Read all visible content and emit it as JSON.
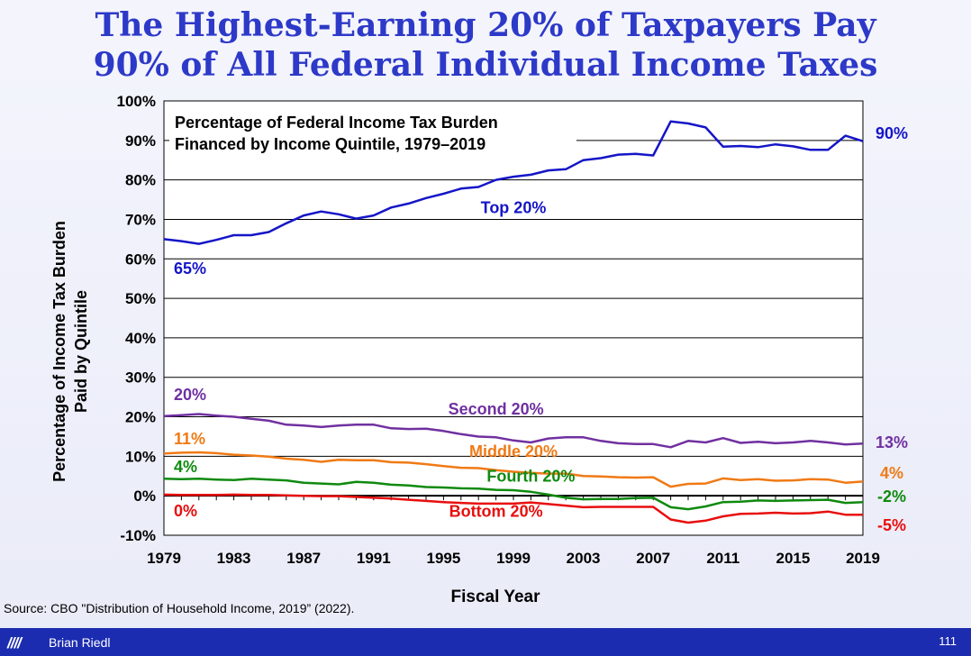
{
  "title_lines": [
    "The Highest-Earning 20% of Taxpayers Pay",
    "90% of All Federal Individual Income Taxes"
  ],
  "footer": {
    "logo": "////",
    "author": "Brian Riedl",
    "page_number": "111"
  },
  "source": "Source: CBO \"Distribution of Household Income, 2019” (2022).",
  "colors": {
    "title": "#2d39c8",
    "footer_bg": "#1c2cb0"
  },
  "chart_data": {
    "type": "line",
    "title": "Percentage of Federal Income Tax Burden\nFinanced by Income Quintile, 1979–2019",
    "xlabel": "Fiscal Year",
    "ylabel": "Percentage of Income Tax Burden\nPaid by Quintile",
    "xlim": [
      1979,
      2019
    ],
    "ylim": [
      -10,
      100
    ],
    "x_ticks": [
      1979,
      1983,
      1987,
      1991,
      1995,
      1999,
      2003,
      2007,
      2011,
      2015,
      2019
    ],
    "y_ticks": [
      "100%",
      "90%",
      "80%",
      "70%",
      "60%",
      "50%",
      "40%",
      "30%",
      "20%",
      "10%",
      "0%",
      "-10%"
    ],
    "y_tick_values": [
      100,
      90,
      80,
      70,
      60,
      50,
      40,
      30,
      20,
      10,
      0,
      -10
    ],
    "grid": "horizontal",
    "x": [
      1979,
      1980,
      1981,
      1982,
      1983,
      1984,
      1985,
      1986,
      1987,
      1988,
      1989,
      1990,
      1991,
      1992,
      1993,
      1994,
      1995,
      1996,
      1997,
      1998,
      1999,
      2000,
      2001,
      2002,
      2003,
      2004,
      2005,
      2006,
      2007,
      2008,
      2009,
      2010,
      2011,
      2012,
      2013,
      2014,
      2015,
      2016,
      2017,
      2018,
      2019
    ],
    "series": [
      {
        "name": "Top 20%",
        "color": "#1515c8",
        "label_year": 1999,
        "label_value": 73,
        "start_label": "65%",
        "end_label": "90%",
        "values": [
          65,
          64.5,
          63.8,
          64.8,
          66,
          66,
          66.8,
          69,
          71,
          72,
          71.3,
          70.2,
          71,
          73,
          74,
          75.4,
          76.5,
          77.8,
          78.2,
          80,
          80.8,
          81.3,
          82.4,
          82.7,
          85,
          85.5,
          86.4,
          86.6,
          86.2,
          94.8,
          94.3,
          93.3,
          88.4,
          88.6,
          88.3,
          89,
          88.5,
          87.6,
          87.6,
          91.2,
          89.8
        ]
      },
      {
        "name": "Second 20%",
        "color": "#7030a0",
        "label_year": 1998,
        "label_value": 22,
        "start_label": "20%",
        "end_label": "13%",
        "values": [
          20.2,
          20.4,
          20.7,
          20.3,
          20,
          19.5,
          19,
          18,
          17.8,
          17.4,
          17.8,
          18,
          18,
          17.1,
          16.9,
          17,
          16.4,
          15.6,
          15,
          14.8,
          14,
          13.5,
          14.5,
          14.8,
          14.8,
          13.9,
          13.3,
          13.1,
          13.1,
          12.3,
          13.9,
          13.5,
          14.6,
          13.4,
          13.7,
          13.3,
          13.5,
          13.9,
          13.5,
          13,
          13.2
        ]
      },
      {
        "name": "Middle 20%",
        "color": "#f07a15",
        "label_year": 1999,
        "label_value": 11.2,
        "start_label": "11%",
        "end_label": "4%",
        "values": [
          10.7,
          10.9,
          11,
          10.8,
          10.4,
          10.2,
          9.9,
          9.4,
          9.1,
          8.6,
          9.1,
          9,
          9,
          8.5,
          8.4,
          8,
          7.5,
          7.1,
          7,
          6.5,
          6.1,
          5.8,
          5.6,
          5.6,
          5,
          4.9,
          4.7,
          4.6,
          4.7,
          2.3,
          3,
          3.1,
          4.4,
          4,
          4.2,
          3.8,
          3.9,
          4.2,
          4.1,
          3.3,
          3.6
        ]
      },
      {
        "name": "Fourth 20%",
        "color": "#0f8a0f",
        "label_year": 2000,
        "label_value": 5,
        "start_label": "4%",
        "end_label": "-2%",
        "values": [
          4.3,
          4.2,
          4.3,
          4.1,
          4,
          4.3,
          4.1,
          3.9,
          3.3,
          3.1,
          2.9,
          3.5,
          3.3,
          2.8,
          2.6,
          2.2,
          2.1,
          1.9,
          1.8,
          1.5,
          1.4,
          1,
          0.3,
          -0.5,
          -0.9,
          -0.8,
          -0.8,
          -0.6,
          -0.5,
          -2.9,
          -3.4,
          -2.7,
          -1.6,
          -1.5,
          -1.2,
          -1.3,
          -1.2,
          -1.1,
          -1,
          -1.8,
          -1.6
        ]
      },
      {
        "name": "Bottom 20%",
        "color": "#e80e0e",
        "label_year": 1998,
        "label_value": -4,
        "start_label": "0%",
        "end_label": "-5%",
        "values": [
          0.3,
          0.2,
          0.2,
          0.2,
          0.3,
          0.2,
          0.2,
          0.1,
          0,
          -0.1,
          -0.1,
          -0.3,
          -0.5,
          -0.7,
          -1,
          -1.3,
          -1.6,
          -1.8,
          -2,
          -2,
          -2,
          -1.7,
          -2.1,
          -2.5,
          -2.9,
          -2.8,
          -2.8,
          -2.8,
          -2.8,
          -6,
          -6.8,
          -6.3,
          -5.2,
          -4.6,
          -4.5,
          -4.3,
          -4.5,
          -4.4,
          -4,
          -4.8,
          -4.8
        ]
      }
    ]
  }
}
